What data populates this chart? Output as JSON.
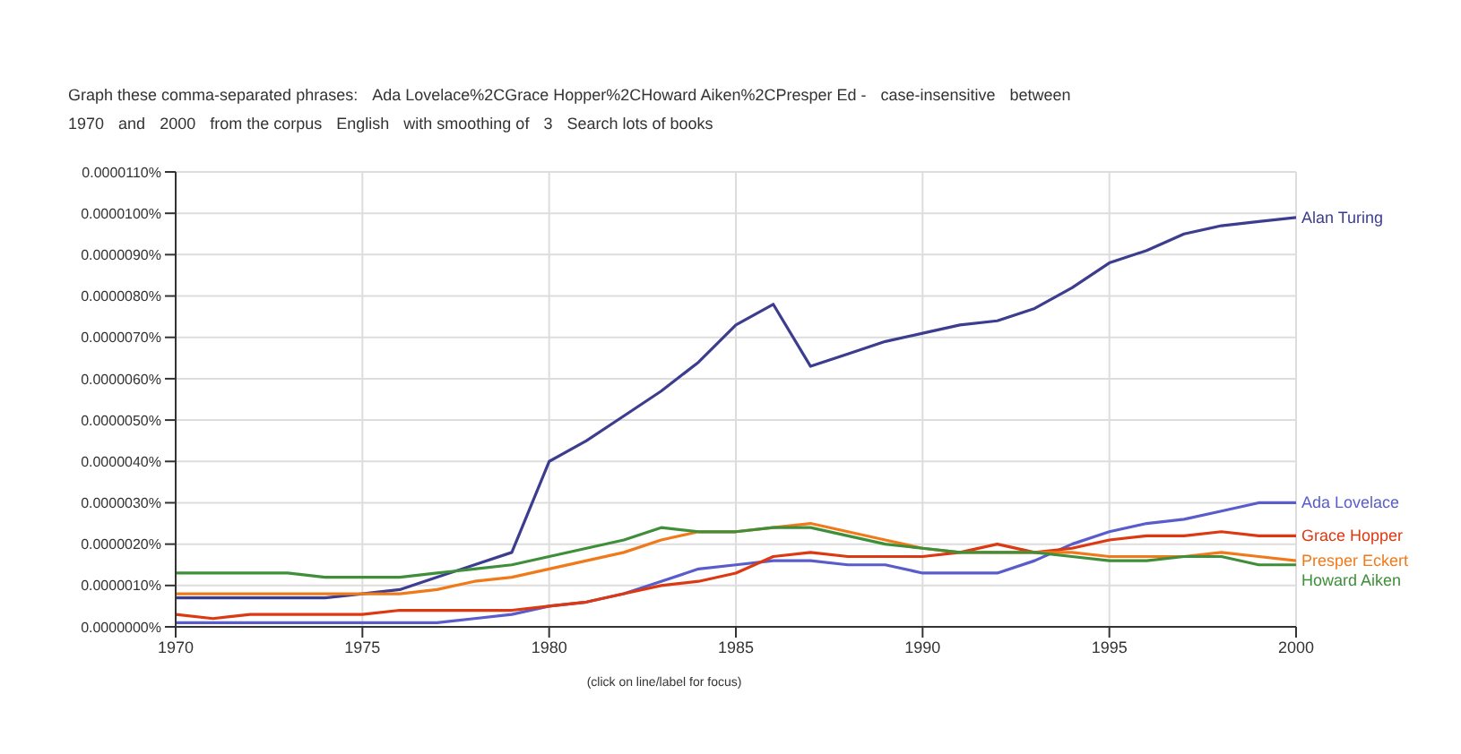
{
  "chart_data": {
    "type": "line",
    "annotations": [
      "Graph these comma-separated phrases:",
      "Ada Lovelace%2CGrace Hopper%2CHoward Aiken%2CPresper Ed -",
      "case-insensitive",
      "between",
      "1970",
      "and",
      "2000",
      "from the corpus",
      "English",
      "with smoothing of",
      "3",
      "Search lots of books",
      "(click on line/label for focus)"
    ],
    "x": [
      1970,
      1971,
      1972,
      1973,
      1974,
      1975,
      1976,
      1977,
      1978,
      1979,
      1980,
      1981,
      1982,
      1983,
      1984,
      1985,
      1986,
      1987,
      1988,
      1989,
      1990,
      1991,
      1992,
      1993,
      1994,
      1995,
      1996,
      1997,
      1998,
      1999,
      2000
    ],
    "series": [
      {
        "name": "Alan Turing",
        "color": "#3c3d8f",
        "values": [
          7e-07,
          7e-07,
          7e-07,
          7e-07,
          7e-07,
          8e-07,
          9e-07,
          1.2e-06,
          1.5e-06,
          1.8e-06,
          4e-06,
          4.5e-06,
          5.1e-06,
          5.7e-06,
          6.4e-06,
          7.3e-06,
          7.8e-06,
          6.3e-06,
          6.6e-06,
          6.9e-06,
          7.1e-06,
          7.3e-06,
          7.4e-06,
          7.7e-06,
          8.2e-06,
          8.8e-06,
          9.1e-06,
          9.5e-06,
          9.7e-06,
          9.8e-06,
          9.9e-06
        ]
      },
      {
        "name": "Ada Lovelace",
        "color": "#5a5ccc",
        "values": [
          1e-07,
          1e-07,
          1e-07,
          1e-07,
          1e-07,
          1e-07,
          1e-07,
          1e-07,
          2e-07,
          3e-07,
          5e-07,
          6e-07,
          8e-07,
          1.1e-06,
          1.4e-06,
          1.5e-06,
          1.6e-06,
          1.6e-06,
          1.5e-06,
          1.5e-06,
          1.3e-06,
          1.3e-06,
          1.3e-06,
          1.6e-06,
          2e-06,
          2.3e-06,
          2.5e-06,
          2.6e-06,
          2.8e-06,
          3e-06,
          3e-06
        ]
      },
      {
        "name": "Grace Hopper",
        "color": "#dc3912",
        "values": [
          3e-07,
          2e-07,
          3e-07,
          3e-07,
          3e-07,
          3e-07,
          4e-07,
          4e-07,
          4e-07,
          4e-07,
          5e-07,
          6e-07,
          8e-07,
          1e-06,
          1.1e-06,
          1.3e-06,
          1.7e-06,
          1.8e-06,
          1.7e-06,
          1.7e-06,
          1.7e-06,
          1.8e-06,
          2e-06,
          1.8e-06,
          1.9e-06,
          2.1e-06,
          2.2e-06,
          2.2e-06,
          2.3e-06,
          2.2e-06,
          2.2e-06
        ]
      },
      {
        "name": "Presper Eckert",
        "color": "#f07a1a",
        "values": [
          8e-07,
          8e-07,
          8e-07,
          8e-07,
          8e-07,
          8e-07,
          8e-07,
          9e-07,
          1.1e-06,
          1.2e-06,
          1.4e-06,
          1.6e-06,
          1.8e-06,
          2.1e-06,
          2.3e-06,
          2.3e-06,
          2.4e-06,
          2.5e-06,
          2.3e-06,
          2.1e-06,
          1.9e-06,
          1.8e-06,
          1.8e-06,
          1.8e-06,
          1.8e-06,
          1.7e-06,
          1.7e-06,
          1.7e-06,
          1.8e-06,
          1.7e-06,
          1.6e-06
        ]
      },
      {
        "name": "Howard Aiken",
        "color": "#3f8f3a",
        "values": [
          1.3e-06,
          1.3e-06,
          1.3e-06,
          1.3e-06,
          1.2e-06,
          1.2e-06,
          1.2e-06,
          1.3e-06,
          1.4e-06,
          1.5e-06,
          1.7e-06,
          1.9e-06,
          2.1e-06,
          2.4e-06,
          2.3e-06,
          2.3e-06,
          2.4e-06,
          2.4e-06,
          2.2e-06,
          2e-06,
          1.9e-06,
          1.8e-06,
          1.8e-06,
          1.8e-06,
          1.7e-06,
          1.6e-06,
          1.6e-06,
          1.7e-06,
          1.7e-06,
          1.5e-06,
          1.5e-06
        ]
      }
    ],
    "xlim": [
      1970,
      2000
    ],
    "xticks": [
      1970,
      1975,
      1980,
      1985,
      1990,
      1995,
      2000
    ],
    "ylim": [
      0,
      1.1e-05
    ],
    "yticks": [
      {
        "value": 0,
        "label": "0.0000000%"
      },
      {
        "value": 1e-06,
        "label": "0.0000010%"
      },
      {
        "value": 2e-06,
        "label": "0.0000020%"
      },
      {
        "value": 3e-06,
        "label": "0.0000030%"
      },
      {
        "value": 4e-06,
        "label": "0.0000040%"
      },
      {
        "value": 5e-06,
        "label": "0.0000050%"
      },
      {
        "value": 6e-06,
        "label": "0.0000060%"
      },
      {
        "value": 7e-06,
        "label": "0.0000070%"
      },
      {
        "value": 8e-06,
        "label": "0.0000080%"
      },
      {
        "value": 9e-06,
        "label": "0.0000090%"
      },
      {
        "value": 1e-05,
        "label": "0.0000100%"
      },
      {
        "value": 1.1e-05,
        "label": "0.0000110%"
      }
    ],
    "grid": true
  }
}
